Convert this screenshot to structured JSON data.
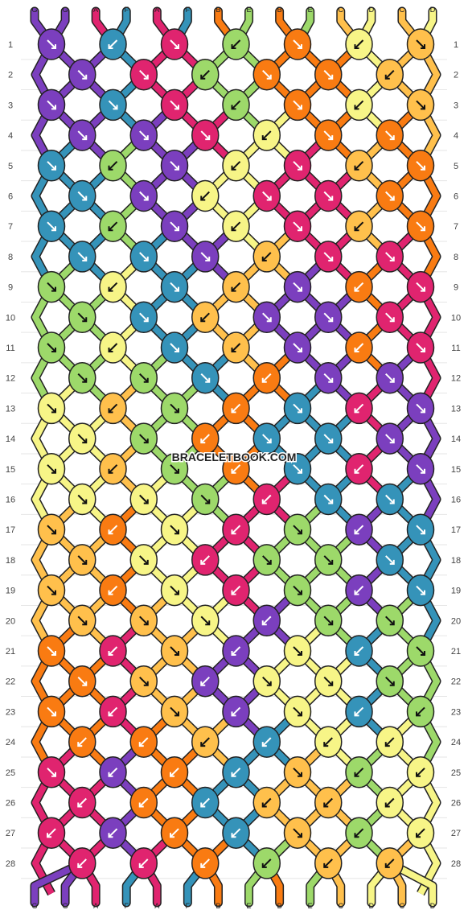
{
  "watermark": "BRACELETBOOK.COM",
  "colors": {
    "G": "#7B3FBE",
    "A": "#E0246F",
    "F": "#3593B9",
    "B": "#F97B12",
    "E": "#9DD96A",
    "C": "#FFC04C",
    "D": "#F7F587"
  },
  "strand_labels_top": [
    "G",
    "G",
    "A",
    "F",
    "A",
    "F",
    "B",
    "E",
    "B",
    "E",
    "C",
    "D",
    "C",
    "D"
  ],
  "strand_labels_bottom": [
    "G",
    "G",
    "A",
    "F",
    "A",
    "F",
    "B",
    "E",
    "B",
    "E",
    "C",
    "D",
    "C",
    "D"
  ],
  "row_labels": [
    "1",
    "2",
    "3",
    "4",
    "5",
    "6",
    "7",
    "8",
    "9",
    "10",
    "11",
    "12",
    "13",
    "14",
    "15",
    "16",
    "17",
    "18",
    "19",
    "20",
    "21",
    "22",
    "23",
    "24",
    "25",
    "26",
    "27",
    "28"
  ],
  "knot_rows": [
    [
      {
        "c": "G",
        "d": "br"
      },
      {
        "c": "F",
        "d": "bl"
      },
      {
        "c": "A",
        "d": "br"
      },
      {
        "c": "E",
        "d": "bl"
      },
      {
        "c": "B",
        "d": "br"
      },
      {
        "c": "D",
        "d": "bl"
      },
      {
        "c": "C",
        "d": "br"
      }
    ],
    [
      {
        "c": "G",
        "d": "br"
      },
      {
        "c": "A",
        "d": "br"
      },
      {
        "c": "E",
        "d": "bl"
      },
      {
        "c": "B",
        "d": "br"
      },
      {
        "c": "B",
        "d": "br"
      },
      {
        "c": "C",
        "d": "bl"
      }
    ],
    [
      {
        "c": "G",
        "d": "br"
      },
      {
        "c": "F",
        "d": "br"
      },
      {
        "c": "A",
        "d": "br"
      },
      {
        "c": "E",
        "d": "bl"
      },
      {
        "c": "B",
        "d": "br"
      },
      {
        "c": "D",
        "d": "bl"
      },
      {
        "c": "C",
        "d": "br"
      }
    ],
    [
      {
        "c": "G",
        "d": "br"
      },
      {
        "c": "G",
        "d": "br"
      },
      {
        "c": "A",
        "d": "br"
      },
      {
        "c": "D",
        "d": "bl"
      },
      {
        "c": "B",
        "d": "br"
      },
      {
        "c": "B",
        "d": "br"
      }
    ],
    [
      {
        "c": "F",
        "d": "br"
      },
      {
        "c": "E",
        "d": "bl"
      },
      {
        "c": "G",
        "d": "br"
      },
      {
        "c": "D",
        "d": "bl"
      },
      {
        "c": "A",
        "d": "br"
      },
      {
        "c": "C",
        "d": "bl"
      },
      {
        "c": "B",
        "d": "br"
      }
    ],
    [
      {
        "c": "F",
        "d": "br"
      },
      {
        "c": "G",
        "d": "br"
      },
      {
        "c": "D",
        "d": "bl"
      },
      {
        "c": "A",
        "d": "br"
      },
      {
        "c": "A",
        "d": "br"
      },
      {
        "c": "B",
        "d": "br"
      }
    ],
    [
      {
        "c": "F",
        "d": "br"
      },
      {
        "c": "E",
        "d": "bl"
      },
      {
        "c": "G",
        "d": "br"
      },
      {
        "c": "D",
        "d": "bl"
      },
      {
        "c": "A",
        "d": "br"
      },
      {
        "c": "C",
        "d": "bl"
      },
      {
        "c": "B",
        "d": "br"
      }
    ],
    [
      {
        "c": "F",
        "d": "br"
      },
      {
        "c": "F",
        "d": "br"
      },
      {
        "c": "G",
        "d": "br"
      },
      {
        "c": "C",
        "d": "bl"
      },
      {
        "c": "A",
        "d": "br"
      },
      {
        "c": "A",
        "d": "br"
      }
    ],
    [
      {
        "c": "E",
        "d": "br"
      },
      {
        "c": "D",
        "d": "bl"
      },
      {
        "c": "F",
        "d": "br"
      },
      {
        "c": "C",
        "d": "bl"
      },
      {
        "c": "G",
        "d": "br"
      },
      {
        "c": "B",
        "d": "bl"
      },
      {
        "c": "A",
        "d": "br"
      }
    ],
    [
      {
        "c": "E",
        "d": "br"
      },
      {
        "c": "F",
        "d": "br"
      },
      {
        "c": "C",
        "d": "bl"
      },
      {
        "c": "G",
        "d": "br"
      },
      {
        "c": "G",
        "d": "br"
      },
      {
        "c": "A",
        "d": "br"
      }
    ],
    [
      {
        "c": "E",
        "d": "br"
      },
      {
        "c": "D",
        "d": "bl"
      },
      {
        "c": "F",
        "d": "br"
      },
      {
        "c": "C",
        "d": "bl"
      },
      {
        "c": "G",
        "d": "br"
      },
      {
        "c": "B",
        "d": "bl"
      },
      {
        "c": "A",
        "d": "br"
      }
    ],
    [
      {
        "c": "E",
        "d": "br"
      },
      {
        "c": "E",
        "d": "br"
      },
      {
        "c": "F",
        "d": "br"
      },
      {
        "c": "B",
        "d": "bl"
      },
      {
        "c": "G",
        "d": "br"
      },
      {
        "c": "G",
        "d": "br"
      }
    ],
    [
      {
        "c": "D",
        "d": "br"
      },
      {
        "c": "C",
        "d": "bl"
      },
      {
        "c": "E",
        "d": "br"
      },
      {
        "c": "B",
        "d": "bl"
      },
      {
        "c": "F",
        "d": "br"
      },
      {
        "c": "A",
        "d": "bl"
      },
      {
        "c": "G",
        "d": "br"
      }
    ],
    [
      {
        "c": "D",
        "d": "br"
      },
      {
        "c": "E",
        "d": "br"
      },
      {
        "c": "B",
        "d": "bl"
      },
      {
        "c": "F",
        "d": "br"
      },
      {
        "c": "F",
        "d": "br"
      },
      {
        "c": "G",
        "d": "br"
      }
    ],
    [
      {
        "c": "D",
        "d": "br"
      },
      {
        "c": "C",
        "d": "bl"
      },
      {
        "c": "E",
        "d": "br"
      },
      {
        "c": "B",
        "d": "bl"
      },
      {
        "c": "F",
        "d": "br"
      },
      {
        "c": "A",
        "d": "bl"
      },
      {
        "c": "G",
        "d": "br"
      }
    ],
    [
      {
        "c": "D",
        "d": "br"
      },
      {
        "c": "D",
        "d": "br"
      },
      {
        "c": "E",
        "d": "br"
      },
      {
        "c": "A",
        "d": "bl"
      },
      {
        "c": "F",
        "d": "br"
      },
      {
        "c": "F",
        "d": "br"
      }
    ],
    [
      {
        "c": "C",
        "d": "br"
      },
      {
        "c": "B",
        "d": "bl"
      },
      {
        "c": "D",
        "d": "br"
      },
      {
        "c": "A",
        "d": "bl"
      },
      {
        "c": "E",
        "d": "br"
      },
      {
        "c": "G",
        "d": "bl"
      },
      {
        "c": "F",
        "d": "br"
      }
    ],
    [
      {
        "c": "C",
        "d": "br"
      },
      {
        "c": "D",
        "d": "br"
      },
      {
        "c": "A",
        "d": "bl"
      },
      {
        "c": "E",
        "d": "br"
      },
      {
        "c": "E",
        "d": "br"
      },
      {
        "c": "F",
        "d": "br"
      }
    ],
    [
      {
        "c": "C",
        "d": "br"
      },
      {
        "c": "B",
        "d": "bl"
      },
      {
        "c": "D",
        "d": "br"
      },
      {
        "c": "A",
        "d": "bl"
      },
      {
        "c": "E",
        "d": "br"
      },
      {
        "c": "G",
        "d": "bl"
      },
      {
        "c": "F",
        "d": "br"
      }
    ],
    [
      {
        "c": "C",
        "d": "br"
      },
      {
        "c": "C",
        "d": "br"
      },
      {
        "c": "D",
        "d": "br"
      },
      {
        "c": "G",
        "d": "bl"
      },
      {
        "c": "E",
        "d": "br"
      },
      {
        "c": "E",
        "d": "br"
      }
    ],
    [
      {
        "c": "B",
        "d": "br"
      },
      {
        "c": "A",
        "d": "bl"
      },
      {
        "c": "C",
        "d": "br"
      },
      {
        "c": "G",
        "d": "bl"
      },
      {
        "c": "D",
        "d": "br"
      },
      {
        "c": "F",
        "d": "bl"
      },
      {
        "c": "E",
        "d": "br"
      }
    ],
    [
      {
        "c": "B",
        "d": "br"
      },
      {
        "c": "C",
        "d": "br"
      },
      {
        "c": "G",
        "d": "bl"
      },
      {
        "c": "D",
        "d": "br"
      },
      {
        "c": "D",
        "d": "br"
      },
      {
        "c": "E",
        "d": "br"
      }
    ],
    [
      {
        "c": "B",
        "d": "br"
      },
      {
        "c": "A",
        "d": "bl"
      },
      {
        "c": "C",
        "d": "br"
      },
      {
        "c": "G",
        "d": "bl"
      },
      {
        "c": "D",
        "d": "br"
      },
      {
        "c": "F",
        "d": "bl"
      },
      {
        "c": "E",
        "d": "bl"
      }
    ],
    [
      {
        "c": "B",
        "d": "bl"
      },
      {
        "c": "B",
        "d": "bl"
      },
      {
        "c": "C",
        "d": "bl"
      },
      {
        "c": "F",
        "d": "bl"
      },
      {
        "c": "D",
        "d": "bl"
      },
      {
        "c": "D",
        "d": "bl"
      }
    ],
    [
      {
        "c": "A",
        "d": "br"
      },
      {
        "c": "G",
        "d": "bl"
      },
      {
        "c": "B",
        "d": "bl"
      },
      {
        "c": "F",
        "d": "bl"
      },
      {
        "c": "C",
        "d": "br"
      },
      {
        "c": "E",
        "d": "bl"
      },
      {
        "c": "D",
        "d": "bl"
      }
    ],
    [
      {
        "c": "A",
        "d": "bl"
      },
      {
        "c": "B",
        "d": "bl"
      },
      {
        "c": "F",
        "d": "bl"
      },
      {
        "c": "C",
        "d": "bl"
      },
      {
        "c": "C",
        "d": "bl"
      },
      {
        "c": "D",
        "d": "bl"
      }
    ],
    [
      {
        "c": "A",
        "d": "bl"
      },
      {
        "c": "G",
        "d": "bl"
      },
      {
        "c": "B",
        "d": "bl"
      },
      {
        "c": "F",
        "d": "bl"
      },
      {
        "c": "C",
        "d": "br"
      },
      {
        "c": "E",
        "d": "bl"
      },
      {
        "c": "D",
        "d": "bl"
      }
    ],
    [
      {
        "c": "A",
        "d": "bl"
      },
      {
        "c": "A",
        "d": "bl"
      },
      {
        "c": "B",
        "d": "bl"
      },
      {
        "c": "E",
        "d": "bl"
      },
      {
        "c": "C",
        "d": "bl"
      },
      {
        "c": "C",
        "d": "bl"
      }
    ]
  ]
}
